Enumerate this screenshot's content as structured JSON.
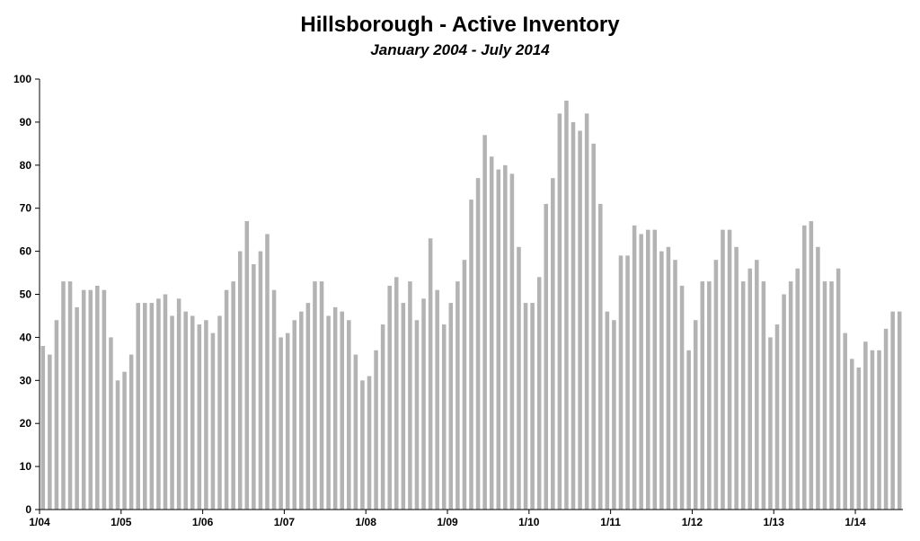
{
  "chart_data": {
    "type": "bar",
    "title": "Hillsborough - Active Inventory",
    "subtitle": "January 2004 - July 2014",
    "xlabel": "",
    "ylabel": "",
    "ylim": [
      0,
      100
    ],
    "yticks": [
      0,
      10,
      20,
      30,
      40,
      50,
      60,
      70,
      80,
      90,
      100
    ],
    "xtick_labels": [
      "1/04",
      "1/05",
      "1/06",
      "1/07",
      "1/08",
      "1/09",
      "1/10",
      "1/11",
      "1/12",
      "1/13",
      "1/14"
    ],
    "bar_color": "#b3b3b3",
    "grid": false,
    "legend": "none",
    "categories": [
      "1/04",
      "2/04",
      "3/04",
      "4/04",
      "5/04",
      "6/04",
      "7/04",
      "8/04",
      "9/04",
      "10/04",
      "11/04",
      "12/04",
      "1/05",
      "2/05",
      "3/05",
      "4/05",
      "5/05",
      "6/05",
      "7/05",
      "8/05",
      "9/05",
      "10/05",
      "11/05",
      "12/05",
      "1/06",
      "2/06",
      "3/06",
      "4/06",
      "5/06",
      "6/06",
      "7/06",
      "8/06",
      "9/06",
      "10/06",
      "11/06",
      "12/06",
      "1/07",
      "2/07",
      "3/07",
      "4/07",
      "5/07",
      "6/07",
      "7/07",
      "8/07",
      "9/07",
      "10/07",
      "11/07",
      "12/07",
      "1/08",
      "2/08",
      "3/08",
      "4/08",
      "5/08",
      "6/08",
      "7/08",
      "8/08",
      "9/08",
      "10/08",
      "11/08",
      "12/08",
      "1/09",
      "2/09",
      "3/09",
      "4/09",
      "5/09",
      "6/09",
      "7/09",
      "8/09",
      "9/09",
      "10/09",
      "11/09",
      "12/09",
      "1/10",
      "2/10",
      "3/10",
      "4/10",
      "5/10",
      "6/10",
      "7/10",
      "8/10",
      "9/10",
      "10/10",
      "11/10",
      "12/10",
      "1/11",
      "2/11",
      "3/11",
      "4/11",
      "5/11",
      "6/11",
      "7/11",
      "8/11",
      "9/11",
      "10/11",
      "11/11",
      "12/11",
      "1/12",
      "2/12",
      "3/12",
      "4/12",
      "5/12",
      "6/12",
      "7/12",
      "8/12",
      "9/12",
      "10/12",
      "11/12",
      "12/12",
      "1/13",
      "2/13",
      "3/13",
      "4/13",
      "5/13",
      "6/13",
      "7/13",
      "8/13",
      "9/13",
      "10/13",
      "11/13",
      "12/13",
      "1/14",
      "2/14",
      "3/14",
      "4/14",
      "5/14",
      "6/14",
      "7/14"
    ],
    "values": [
      38,
      36,
      44,
      53,
      53,
      47,
      51,
      51,
      52,
      51,
      40,
      30,
      32,
      36,
      48,
      48,
      48,
      49,
      50,
      45,
      49,
      46,
      45,
      43,
      44,
      41,
      45,
      51,
      53,
      60,
      67,
      57,
      60,
      64,
      51,
      40,
      41,
      44,
      46,
      48,
      53,
      53,
      45,
      47,
      46,
      44,
      36,
      30,
      31,
      37,
      43,
      52,
      54,
      48,
      53,
      44,
      49,
      63,
      51,
      43,
      48,
      53,
      58,
      72,
      77,
      87,
      82,
      79,
      80,
      78,
      61,
      48,
      48,
      54,
      71,
      77,
      92,
      95,
      90,
      88,
      92,
      85,
      71,
      46,
      44,
      59,
      59,
      66,
      64,
      65,
      65,
      60,
      61,
      58,
      52,
      37,
      44,
      53,
      53,
      58,
      65,
      65,
      61,
      53,
      56,
      58,
      53,
      40,
      43,
      50,
      53,
      56,
      66,
      67,
      61,
      53,
      53,
      56,
      41,
      35,
      33,
      39,
      37,
      37,
      42,
      46,
      46
    ]
  }
}
